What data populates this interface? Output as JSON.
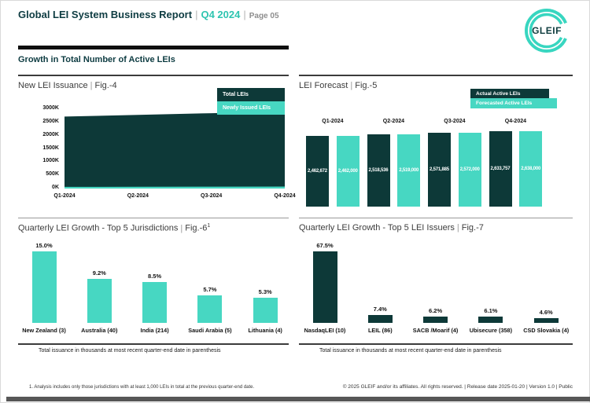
{
  "sep": "|",
  "header": {
    "title": "Global LEI System Business Report",
    "period": "Q4 2024",
    "page": "Page 05"
  },
  "logo": {
    "text": "GLEIF"
  },
  "section": {
    "title": "Growth in Total Number of Active LEIs"
  },
  "colors": {
    "dark_teal": "#0d3938",
    "teal": "#47d7c2",
    "accent_text": "#2ec4b0",
    "page_label_gray": "#8e8e8e",
    "bottom_bar_gray": "#575757"
  },
  "chart_data": [
    {
      "id": "fig4",
      "type": "area",
      "title": "New LEI Issuance",
      "fig_label": "Fig.-4",
      "legend": [
        {
          "label": "Total LEIs",
          "color": "#0d3938"
        },
        {
          "label": "Newly Issued LEIs",
          "color": "#47d7c2"
        }
      ],
      "categories": [
        "Q1-2024",
        "Q2-2024",
        "Q3-2024",
        "Q4-2024"
      ],
      "series": [
        {
          "name": "Total LEIs",
          "color": "#0d3938",
          "values": [
            2720000,
            2785000,
            2850000,
            2920000
          ],
          "estimated": true
        },
        {
          "name": "Newly Issued LEIs",
          "color": "#47d7c2",
          "values": [
            62000,
            66000,
            70000,
            75000
          ],
          "estimated": true
        }
      ],
      "ylim": [
        0,
        3000000
      ],
      "ytick_step": 500000,
      "ytick_labels": [
        "0K",
        "500K",
        "1000K",
        "1500K",
        "2000K",
        "2500K",
        "3000K"
      ],
      "grid": false,
      "legend_position": "top-right"
    },
    {
      "id": "fig5",
      "type": "bar",
      "title": "LEI Forecast",
      "fig_label": "Fig.-5",
      "legend": [
        {
          "label": "Actual Active LEIs",
          "color": "#0d3938"
        },
        {
          "label": "Forecasted Active LEIs",
          "color": "#47d7c2"
        }
      ],
      "categories": [
        "Q1-2024",
        "Q2-2024",
        "Q3-2024",
        "Q4-2024"
      ],
      "series": [
        {
          "name": "Actual Active LEIs",
          "color": "#0d3938",
          "values": [
            2462672,
            2518536,
            2571885,
            2633757
          ]
        },
        {
          "name": "Forecasted Active LEIs",
          "color": "#47d7c2",
          "values": [
            2462000,
            2519000,
            2572000,
            2638000
          ]
        }
      ],
      "value_labels": "inside-white",
      "legend_position": "top-right"
    },
    {
      "id": "fig6",
      "type": "bar",
      "title": "Quarterly LEI Growth - Top 5 Jurisdictions",
      "fig_label": "Fig.-6",
      "footnote_ref": "1",
      "bar_color": "#47d7c2",
      "categories": [
        "New Zealand (3)",
        "Australia (40)",
        "India (214)",
        "Saudi Arabia (5)",
        "Lithuania (4)"
      ],
      "values": [
        15.0,
        9.2,
        8.5,
        5.7,
        5.3
      ],
      "value_suffix": "%"
    },
    {
      "id": "fig7",
      "type": "bar",
      "title": "Quarterly LEI Growth - Top 5 LEI Issuers",
      "fig_label": "Fig.-7",
      "bar_color": "#0d3938",
      "categories": [
        "NasdaqLEI (10)",
        "LEIL (86)",
        "SACB /Moarif (4)",
        "Ubisecure (358)",
        "CSD Slovakia (4)"
      ],
      "values": [
        67.5,
        7.4,
        6.2,
        6.1,
        4.6
      ],
      "value_suffix": "%"
    }
  ],
  "captions": {
    "left": "Total issuance in thousands at most recent quarter-end date in parenthesis",
    "right": "Total issuance in thousands at most recent quarter-end date in parenthesis"
  },
  "footnote": {
    "text": "1. Analysis includes only those jurisdictions with at least 1,000 LEIs in total at the previous quarter-end date."
  },
  "footer": {
    "text": "© 2025 GLEIF and/or its affiliates. All rights reserved.  |  Release date 2025-01-20  |  Version 1.0  |  Public"
  }
}
